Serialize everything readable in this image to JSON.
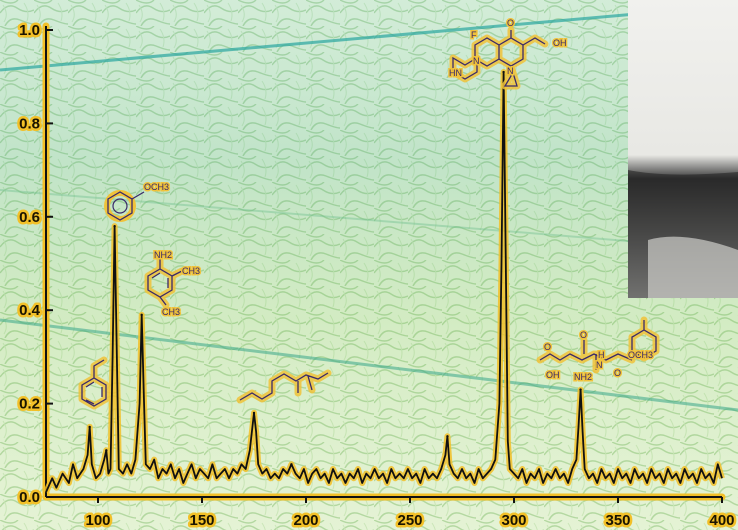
{
  "colors": {
    "background_light": "#dff0d8",
    "background_green": "#b9dba0",
    "background_teal": "#9fd8d0",
    "axis": "#111111",
    "axis_glow": "#f2c028",
    "spectrum_line": "#111111",
    "spectrum_glow": "#f2c028",
    "molecule_ink": "#3a2a6a",
    "teal_line": "#2aa7a0"
  },
  "chart_data": {
    "type": "line",
    "title": "",
    "xlabel": "",
    "ylabel": "",
    "xlim": [
      75,
      400
    ],
    "ylim": [
      0,
      1.0
    ],
    "xticks": [
      "100",
      "150",
      "200",
      "250",
      "300",
      "350",
      "400"
    ],
    "yticks": [
      "0.0",
      "0.2",
      "0.4",
      "0.6",
      "0.8",
      "1.0"
    ],
    "grid": false,
    "legend": "none",
    "baseline": 0.03,
    "peaks": [
      {
        "x": 96,
        "y": 0.15
      },
      {
        "x": 104,
        "y": 0.1
      },
      {
        "x": 108,
        "y": 0.58
      },
      {
        "x": 121,
        "y": 0.39
      },
      {
        "x": 175,
        "y": 0.18
      },
      {
        "x": 193,
        "y": 0.07
      },
      {
        "x": 268,
        "y": 0.13
      },
      {
        "x": 295,
        "y": 0.91
      },
      {
        "x": 332,
        "y": 0.23
      }
    ],
    "series": [
      {
        "values": [
          [
            75,
            0.01
          ],
          [
            78,
            0.04
          ],
          [
            80,
            0.02
          ],
          [
            83,
            0.05
          ],
          [
            86,
            0.03
          ],
          [
            88,
            0.07
          ],
          [
            90,
            0.04
          ],
          [
            93,
            0.06
          ],
          [
            95,
            0.09
          ],
          [
            96,
            0.15
          ],
          [
            97,
            0.07
          ],
          [
            99,
            0.04
          ],
          [
            101,
            0.05
          ],
          [
            103,
            0.08
          ],
          [
            104,
            0.1
          ],
          [
            105,
            0.05
          ],
          [
            106,
            0.06
          ],
          [
            107,
            0.3
          ],
          [
            108,
            0.58
          ],
          [
            109,
            0.32
          ],
          [
            110,
            0.06
          ],
          [
            112,
            0.05
          ],
          [
            114,
            0.07
          ],
          [
            116,
            0.05
          ],
          [
            118,
            0.08
          ],
          [
            120,
            0.2
          ],
          [
            121,
            0.39
          ],
          [
            122,
            0.22
          ],
          [
            123,
            0.07
          ],
          [
            125,
            0.06
          ],
          [
            127,
            0.08
          ],
          [
            129,
            0.04
          ],
          [
            131,
            0.06
          ],
          [
            133,
            0.05
          ],
          [
            135,
            0.07
          ],
          [
            137,
            0.04
          ],
          [
            139,
            0.06
          ],
          [
            141,
            0.03
          ],
          [
            143,
            0.05
          ],
          [
            145,
            0.07
          ],
          [
            147,
            0.04
          ],
          [
            149,
            0.06
          ],
          [
            151,
            0.05
          ],
          [
            153,
            0.04
          ],
          [
            155,
            0.07
          ],
          [
            157,
            0.04
          ],
          [
            159,
            0.05
          ],
          [
            161,
            0.06
          ],
          [
            163,
            0.04
          ],
          [
            165,
            0.06
          ],
          [
            167,
            0.05
          ],
          [
            169,
            0.07
          ],
          [
            171,
            0.06
          ],
          [
            173,
            0.1
          ],
          [
            175,
            0.18
          ],
          [
            176,
            0.14
          ],
          [
            177,
            0.07
          ],
          [
            179,
            0.05
          ],
          [
            181,
            0.06
          ],
          [
            183,
            0.04
          ],
          [
            185,
            0.05
          ],
          [
            187,
            0.04
          ],
          [
            189,
            0.06
          ],
          [
            191,
            0.05
          ],
          [
            193,
            0.07
          ],
          [
            195,
            0.05
          ],
          [
            197,
            0.04
          ],
          [
            199,
            0.06
          ],
          [
            201,
            0.03
          ],
          [
            203,
            0.05
          ],
          [
            205,
            0.06
          ],
          [
            207,
            0.04
          ],
          [
            209,
            0.05
          ],
          [
            211,
            0.03
          ],
          [
            213,
            0.06
          ],
          [
            215,
            0.04
          ],
          [
            217,
            0.05
          ],
          [
            219,
            0.03
          ],
          [
            221,
            0.05
          ],
          [
            223,
            0.04
          ],
          [
            225,
            0.06
          ],
          [
            227,
            0.03
          ],
          [
            229,
            0.05
          ],
          [
            231,
            0.04
          ],
          [
            233,
            0.06
          ],
          [
            235,
            0.04
          ],
          [
            237,
            0.05
          ],
          [
            239,
            0.03
          ],
          [
            241,
            0.06
          ],
          [
            243,
            0.04
          ],
          [
            245,
            0.05
          ],
          [
            247,
            0.04
          ],
          [
            249,
            0.06
          ],
          [
            251,
            0.04
          ],
          [
            253,
            0.05
          ],
          [
            255,
            0.03
          ],
          [
            257,
            0.06
          ],
          [
            259,
            0.04
          ],
          [
            261,
            0.05
          ],
          [
            263,
            0.04
          ],
          [
            265,
            0.06
          ],
          [
            267,
            0.09
          ],
          [
            268,
            0.13
          ],
          [
            269,
            0.07
          ],
          [
            271,
            0.05
          ],
          [
            273,
            0.04
          ],
          [
            275,
            0.06
          ],
          [
            277,
            0.04
          ],
          [
            279,
            0.05
          ],
          [
            281,
            0.03
          ],
          [
            283,
            0.06
          ],
          [
            285,
            0.04
          ],
          [
            287,
            0.05
          ],
          [
            289,
            0.06
          ],
          [
            291,
            0.08
          ],
          [
            293,
            0.2
          ],
          [
            294,
            0.5
          ],
          [
            295,
            0.91
          ],
          [
            296,
            0.52
          ],
          [
            297,
            0.12
          ],
          [
            298,
            0.06
          ],
          [
            300,
            0.05
          ],
          [
            302,
            0.04
          ],
          [
            304,
            0.06
          ],
          [
            306,
            0.03
          ],
          [
            308,
            0.05
          ],
          [
            310,
            0.04
          ],
          [
            312,
            0.06
          ],
          [
            314,
            0.03
          ],
          [
            316,
            0.05
          ],
          [
            318,
            0.04
          ],
          [
            320,
            0.06
          ],
          [
            322,
            0.04
          ],
          [
            324,
            0.05
          ],
          [
            326,
            0.03
          ],
          [
            328,
            0.06
          ],
          [
            330,
            0.08
          ],
          [
            331,
            0.15
          ],
          [
            332,
            0.23
          ],
          [
            333,
            0.14
          ],
          [
            334,
            0.06
          ],
          [
            336,
            0.04
          ],
          [
            338,
            0.05
          ],
          [
            340,
            0.03
          ],
          [
            342,
            0.06
          ],
          [
            344,
            0.04
          ],
          [
            346,
            0.05
          ],
          [
            348,
            0.03
          ],
          [
            350,
            0.06
          ],
          [
            352,
            0.04
          ],
          [
            354,
            0.05
          ],
          [
            356,
            0.03
          ],
          [
            358,
            0.06
          ],
          [
            360,
            0.04
          ],
          [
            362,
            0.05
          ],
          [
            364,
            0.03
          ],
          [
            366,
            0.06
          ],
          [
            368,
            0.04
          ],
          [
            370,
            0.05
          ],
          [
            372,
            0.03
          ],
          [
            374,
            0.06
          ],
          [
            376,
            0.04
          ],
          [
            378,
            0.05
          ],
          [
            380,
            0.03
          ],
          [
            382,
            0.06
          ],
          [
            384,
            0.04
          ],
          [
            386,
            0.05
          ],
          [
            388,
            0.03
          ],
          [
            390,
            0.06
          ],
          [
            392,
            0.04
          ],
          [
            394,
            0.05
          ],
          [
            396,
            0.03
          ],
          [
            398,
            0.07
          ],
          [
            400,
            0.04
          ]
        ]
      }
    ],
    "annotations": [
      {
        "kind": "molecule",
        "name": "toluene",
        "x": 96,
        "y": 0.15
      },
      {
        "kind": "molecule",
        "name": "anisole",
        "x": 108,
        "y": 0.58,
        "label": "OCH3"
      },
      {
        "kind": "molecule",
        "name": "2,4-dimethylaniline",
        "x": 121,
        "y": 0.39,
        "labels": [
          "NH2",
          "CH3",
          "CH3"
        ]
      },
      {
        "kind": "molecule",
        "name": "arginine",
        "x": 175,
        "y": 0.18
      },
      {
        "kind": "molecule",
        "name": "ciprofloxacin",
        "x": 295,
        "y": 0.91,
        "labels": [
          "F",
          "O",
          "OH",
          "HN",
          "N",
          "N"
        ]
      },
      {
        "kind": "molecule",
        "name": "aspartame",
        "x": 332,
        "y": 0.23,
        "labels": [
          "O",
          "OH",
          "NH2",
          "N",
          "H",
          "O",
          "OCH3",
          "O"
        ]
      }
    ]
  }
}
